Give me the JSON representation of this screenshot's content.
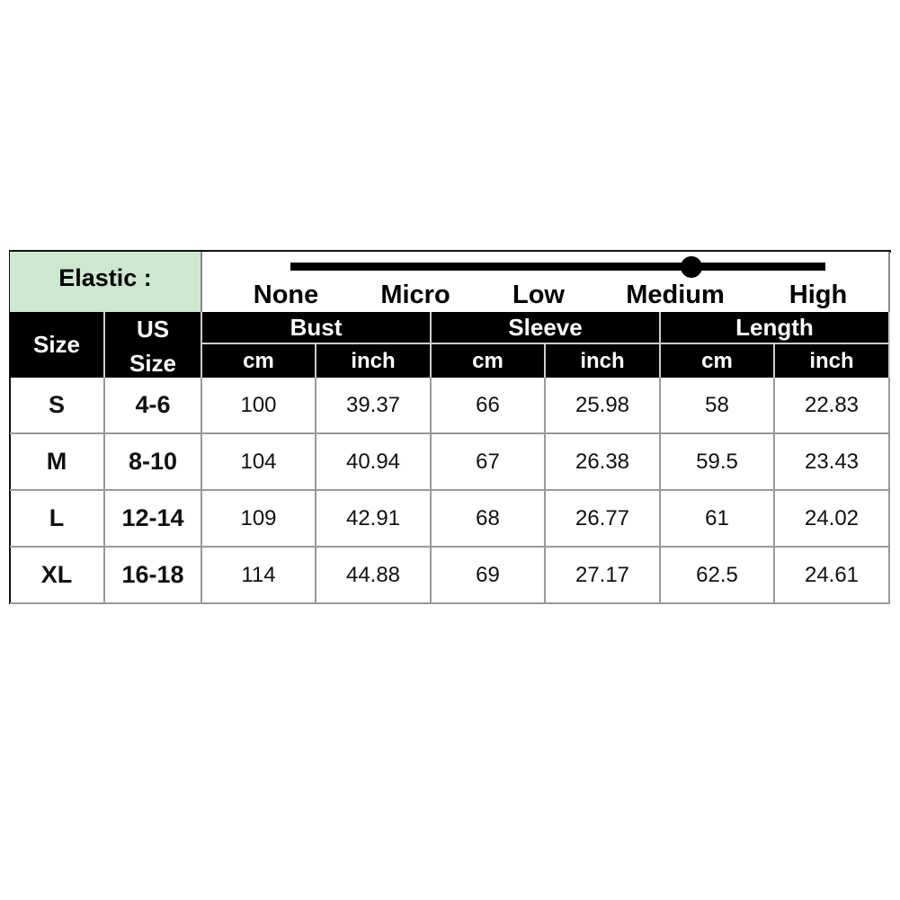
{
  "elastic": {
    "label": "Elastic :",
    "levels": [
      "None",
      "Micro",
      "Low",
      "Medium",
      "High"
    ],
    "selected": "Medium",
    "selected_level": 0.75
  },
  "headers": {
    "size": "Size",
    "us_size_1": "US",
    "us_size_2": "Size",
    "groups": [
      "Bust",
      "Sleeve",
      "Length"
    ],
    "units": [
      "cm",
      "inch",
      "cm",
      "inch",
      "cm",
      "inch"
    ]
  },
  "rows": [
    [
      "S",
      "4-6",
      "100",
      "39.37",
      "66",
      "25.98",
      "58",
      "22.83"
    ],
    [
      "M",
      "8-10",
      "104",
      "40.94",
      "67",
      "26.38",
      "59.5",
      "23.43"
    ],
    [
      "L",
      "12-14",
      "109",
      "42.91",
      "68",
      "26.77",
      "61",
      "24.02"
    ],
    [
      "XL",
      "16-18",
      "114",
      "44.88",
      "69",
      "27.17",
      "62.5",
      "24.61"
    ]
  ],
  "colors": {
    "elastic_bg": "#cde8cf",
    "header_bg": "#000000"
  }
}
